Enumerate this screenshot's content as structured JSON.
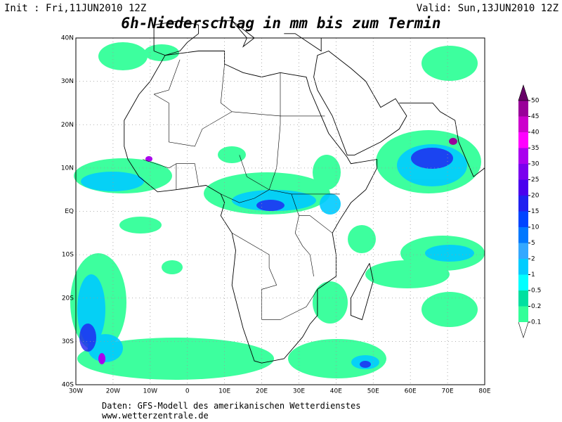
{
  "header": {
    "init": "Init : Fri,11JUN2010 12Z",
    "valid": "Valid: Sun,13JUN2010 12Z",
    "title": "6h-Niederschlag in mm bis zum Termin"
  },
  "map": {
    "lat_labels": [
      "40N",
      "30N",
      "20N",
      "10N",
      "EQ",
      "10S",
      "20S",
      "30S",
      "40S"
    ],
    "lon_labels": [
      "30W",
      "20W",
      "10W",
      "0",
      "10E",
      "20E",
      "30E",
      "40E",
      "50E",
      "60E",
      "70E",
      "80E"
    ]
  },
  "legend": {
    "levels": [
      0.1,
      0.2,
      0.5,
      1,
      2,
      5,
      10,
      15,
      20,
      25,
      30,
      35,
      40,
      45,
      50
    ],
    "colors": [
      "#33ff99",
      "#00e0a0",
      "#00ffff",
      "#00ccff",
      "#33a8ff",
      "#0078ff",
      "#0044ff",
      "#2020f0",
      "#4a00ee",
      "#7a00ee",
      "#aa00ee",
      "#ff00ff",
      "#cc00cc",
      "#990099",
      "#660066"
    ]
  },
  "footer": {
    "line1": "Daten: GFS-Modell des amerikanischen Wetterdienstes",
    "line2": "www.wetterzentrale.de"
  }
}
